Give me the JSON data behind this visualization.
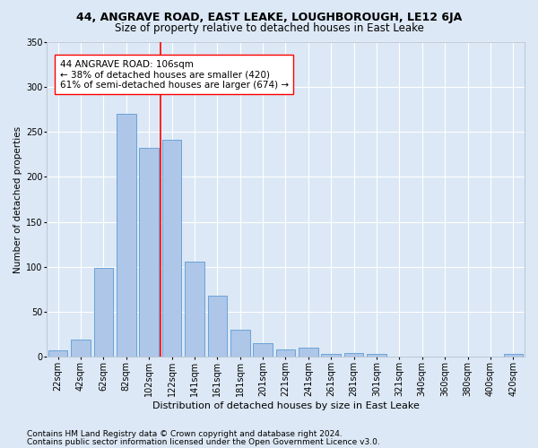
{
  "title": "44, ANGRAVE ROAD, EAST LEAKE, LOUGHBOROUGH, LE12 6JA",
  "subtitle": "Size of property relative to detached houses in East Leake",
  "xlabel": "Distribution of detached houses by size in East Leake",
  "ylabel": "Number of detached properties",
  "categories": [
    "22sqm",
    "42sqm",
    "62sqm",
    "82sqm",
    "102sqm",
    "122sqm",
    "141sqm",
    "161sqm",
    "181sqm",
    "201sqm",
    "221sqm",
    "241sqm",
    "261sqm",
    "281sqm",
    "301sqm",
    "321sqm",
    "340sqm",
    "360sqm",
    "380sqm",
    "400sqm",
    "420sqm"
  ],
  "values": [
    7,
    19,
    99,
    270,
    232,
    241,
    106,
    68,
    30,
    15,
    8,
    10,
    3,
    4,
    3,
    0,
    0,
    0,
    0,
    0,
    3
  ],
  "bar_color": "#aec6e8",
  "bar_edge_color": "#5b9bd5",
  "vline_x": 4.5,
  "vline_color": "red",
  "annotation_text": "44 ANGRAVE ROAD: 106sqm\n← 38% of detached houses are smaller (420)\n61% of semi-detached houses are larger (674) →",
  "annotation_box_color": "white",
  "annotation_box_edge_color": "red",
  "ylim": [
    0,
    350
  ],
  "yticks": [
    0,
    50,
    100,
    150,
    200,
    250,
    300,
    350
  ],
  "footer1": "Contains HM Land Registry data © Crown copyright and database right 2024.",
  "footer2": "Contains public sector information licensed under the Open Government Licence v3.0.",
  "bg_color": "#dce8f5",
  "plot_bg_color": "#dce8f5",
  "title_fontsize": 9,
  "subtitle_fontsize": 8.5,
  "xlabel_fontsize": 8,
  "ylabel_fontsize": 7.5,
  "tick_fontsize": 7,
  "annotation_fontsize": 7.5,
  "footer_fontsize": 6.5
}
